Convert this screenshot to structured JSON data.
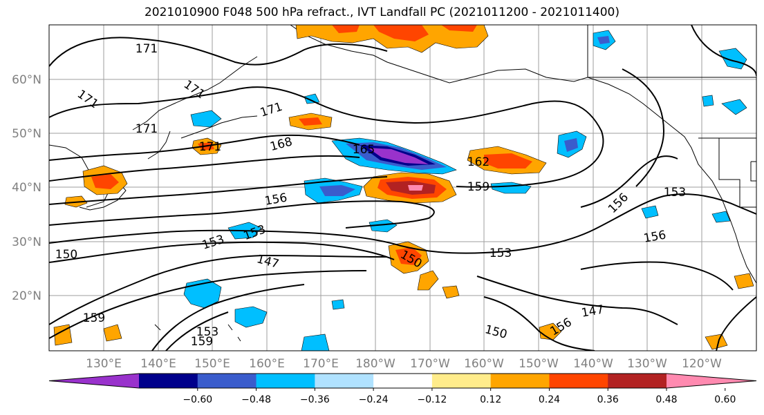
{
  "title": "2021010900 F048 500 hPa refract., IVT Landfall PC (2021011200 - 2021011400)",
  "lat_labels": [
    "60°N",
    "50°N",
    "40°N",
    "30°N",
    "20°N"
  ],
  "lon_labels": [
    "130°E",
    "140°E",
    "150°E",
    "160°E",
    "170°E",
    "180°W",
    "170°W",
    "160°W",
    "150°W",
    "140°W",
    "130°W",
    "120°W"
  ],
  "contour_labels": [
    "171",
    "171",
    "171",
    "171",
    "171",
    "171",
    "168",
    "165",
    "162",
    "159",
    "156",
    "156",
    "156",
    "153",
    "153",
    "153",
    "153",
    "150",
    "150",
    "150",
    "147",
    "147",
    "159",
    "159",
    "153",
    "156"
  ],
  "colorbar": {
    "colors": [
      "#9932cc",
      "#00008b",
      "#3a5ccc",
      "#00bfff",
      "#b0e2ff",
      "#ffffff",
      "#ffec8b",
      "#ffa500",
      "#ff4500",
      "#b22222",
      "#ff8ab0"
    ],
    "tick_labels": [
      "−0.60",
      "−0.48",
      "−0.36",
      "−0.24",
      "−0.12",
      "0.12",
      "0.24",
      "0.36",
      "0.48",
      "0.60"
    ]
  }
}
